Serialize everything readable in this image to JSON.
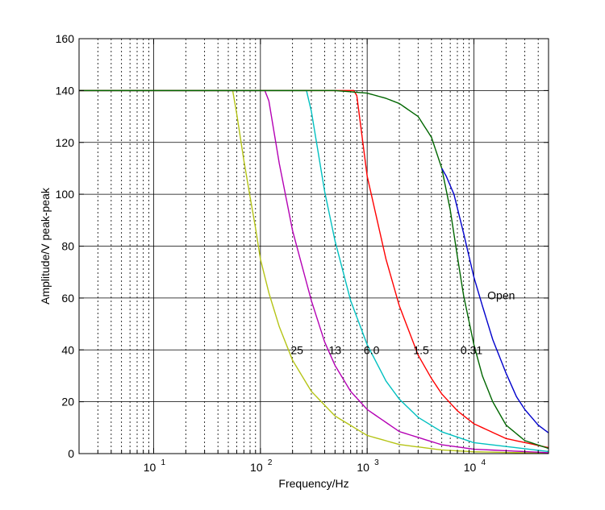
{
  "chart_data": {
    "type": "line",
    "xscale": "log",
    "xlabel": "Frequency/Hz",
    "ylabel": "Amplitude/V peak-peak",
    "xlim": [
      2,
      50000
    ],
    "ylim": [
      0,
      160
    ],
    "y_ticks": [
      "0",
      "20",
      "40",
      "60",
      "80",
      "100",
      "120",
      "140",
      "160"
    ],
    "x_ticks": [
      {
        "base": "10",
        "exp": "1"
      },
      {
        "base": "10",
        "exp": "2"
      },
      {
        "base": "10",
        "exp": "3"
      },
      {
        "base": "10",
        "exp": "4"
      }
    ],
    "grid": true,
    "series": [
      {
        "name": "25",
        "color": "#b5c416",
        "values": [
          [
            2,
            140
          ],
          [
            55,
            140
          ],
          [
            60,
            131
          ],
          [
            70,
            113
          ],
          [
            80,
            99
          ],
          [
            90,
            87
          ],
          [
            100,
            75
          ],
          [
            120,
            62
          ],
          [
            150,
            49
          ],
          [
            200,
            36
          ],
          [
            300,
            24
          ],
          [
            500,
            14.5
          ],
          [
            1000,
            7
          ],
          [
            2000,
            3.5
          ],
          [
            5000,
            1.4
          ],
          [
            10000,
            0.7
          ],
          [
            50000,
            0.14
          ]
        ]
      },
      {
        "name": "13",
        "color": "#b400b4",
        "values": [
          [
            2,
            140
          ],
          [
            110,
            140
          ],
          [
            120,
            136
          ],
          [
            150,
            112
          ],
          [
            200,
            86
          ],
          [
            300,
            59
          ],
          [
            400,
            43
          ],
          [
            500,
            34
          ],
          [
            700,
            24
          ],
          [
            1000,
            17
          ],
          [
            2000,
            8.5
          ],
          [
            5000,
            3.4
          ],
          [
            10000,
            1.7
          ],
          [
            50000,
            0.34
          ]
        ]
      },
      {
        "name": "6.0",
        "color": "#00c0c0",
        "values": [
          [
            2,
            140
          ],
          [
            270,
            140
          ],
          [
            300,
            132
          ],
          [
            400,
            101
          ],
          [
            500,
            82
          ],
          [
            700,
            59
          ],
          [
            1000,
            42
          ],
          [
            1500,
            28
          ],
          [
            2000,
            21
          ],
          [
            3000,
            14
          ],
          [
            5000,
            8.4
          ],
          [
            10000,
            4.2
          ],
          [
            50000,
            0.8
          ]
        ]
      },
      {
        "name": "1.5",
        "color": "#ff0000",
        "values": [
          [
            2,
            140
          ],
          [
            750,
            140
          ],
          [
            800,
            138
          ],
          [
            1000,
            107
          ],
          [
            1500,
            75
          ],
          [
            2000,
            57
          ],
          [
            3000,
            38
          ],
          [
            4000,
            29
          ],
          [
            5000,
            23
          ],
          [
            7000,
            16.5
          ],
          [
            10000,
            11.5
          ],
          [
            20000,
            5.8
          ],
          [
            50000,
            2.3
          ]
        ]
      },
      {
        "name": "0.31",
        "color": "#006600",
        "values": [
          [
            2,
            140
          ],
          [
            500,
            140
          ],
          [
            1000,
            139
          ],
          [
            1500,
            137
          ],
          [
            2000,
            135
          ],
          [
            3000,
            130
          ],
          [
            4000,
            122
          ],
          [
            5000,
            110
          ],
          [
            6000,
            94
          ],
          [
            7000,
            76
          ],
          [
            8000,
            61
          ],
          [
            10000,
            42
          ],
          [
            12000,
            30
          ],
          [
            15000,
            20
          ],
          [
            20000,
            11
          ],
          [
            30000,
            5
          ],
          [
            50000,
            2
          ]
        ]
      },
      {
        "name": "Open",
        "color": "#0000cc",
        "values": [
          [
            5000,
            110
          ],
          [
            5500,
            107
          ],
          [
            6500,
            100
          ],
          [
            8000,
            85
          ],
          [
            10000,
            68
          ],
          [
            12000,
            57
          ],
          [
            15000,
            44
          ],
          [
            20000,
            31
          ],
          [
            25000,
            22
          ],
          [
            30000,
            17
          ],
          [
            40000,
            11
          ],
          [
            50000,
            8
          ]
        ]
      }
    ],
    "annotations": [
      {
        "text": "25",
        "x": 220,
        "y": 40
      },
      {
        "text": "13",
        "x": 500,
        "y": 40
      },
      {
        "text": "6.0",
        "x": 1100,
        "y": 40
      },
      {
        "text": "1.5",
        "x": 3200,
        "y": 40
      },
      {
        "text": "0.31",
        "x": 9500,
        "y": 40
      },
      {
        "text": "Open",
        "x": 18000,
        "y": 61
      }
    ]
  }
}
